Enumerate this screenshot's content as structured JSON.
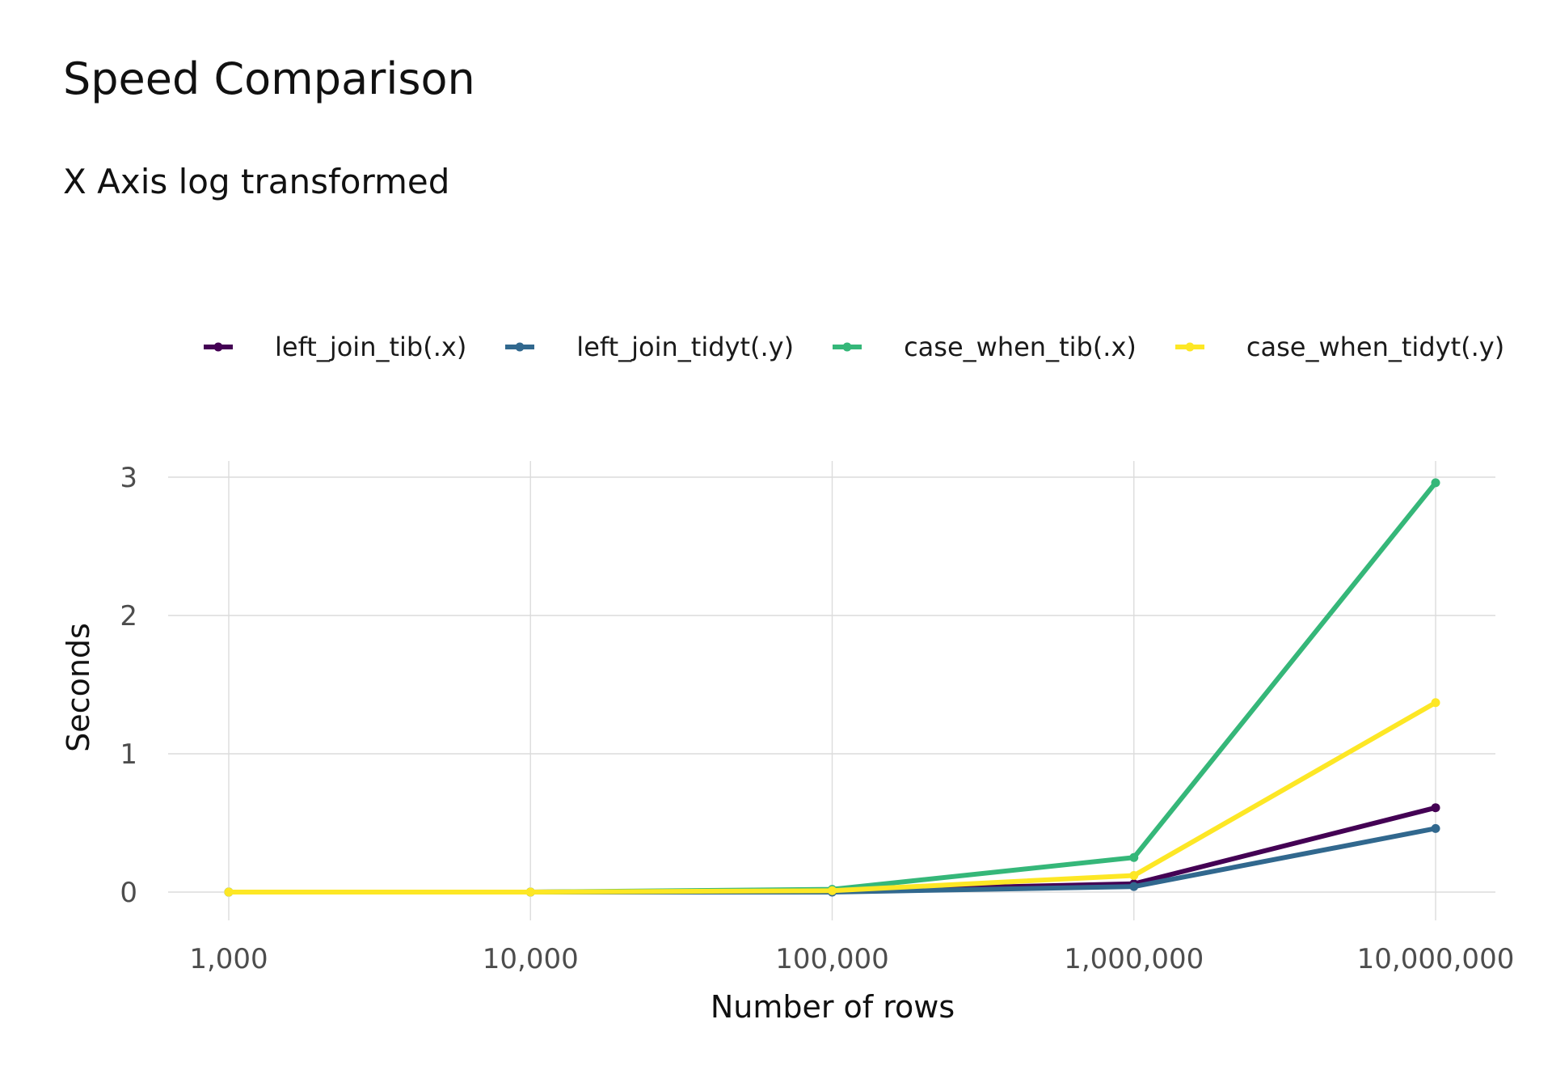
{
  "chart_data": {
    "type": "line",
    "title": "Speed Comparison",
    "subtitle": "X Axis log transformed",
    "xlabel": "Number of rows",
    "ylabel": "Seconds",
    "x_scale": "log10",
    "x": [
      1000,
      10000,
      100000,
      1000000,
      10000000
    ],
    "x_ticks": [
      "1,000",
      "10,000",
      "100,000",
      "1,000,000",
      "10,000,000"
    ],
    "y_ticks": [
      "0",
      "1",
      "2",
      "3"
    ],
    "ylim": [
      -0.2,
      3.1
    ],
    "grid": true,
    "legend_position": "top",
    "series": [
      {
        "name": "left_join_tib(.x)",
        "color": "#440154",
        "values": [
          0.0,
          0.0,
          0.01,
          0.06,
          0.61
        ]
      },
      {
        "name": "left_join_tidyt(.y)",
        "color": "#31688E",
        "values": [
          0.0,
          0.0,
          0.0,
          0.04,
          0.46
        ]
      },
      {
        "name": "case_when_tib(.x)",
        "color": "#35B779",
        "values": [
          0.0,
          0.0,
          0.02,
          0.25,
          2.96
        ]
      },
      {
        "name": "case_when_tidyt(.y)",
        "color": "#FDE725",
        "values": [
          0.0,
          0.0,
          0.01,
          0.12,
          1.37
        ]
      }
    ]
  }
}
